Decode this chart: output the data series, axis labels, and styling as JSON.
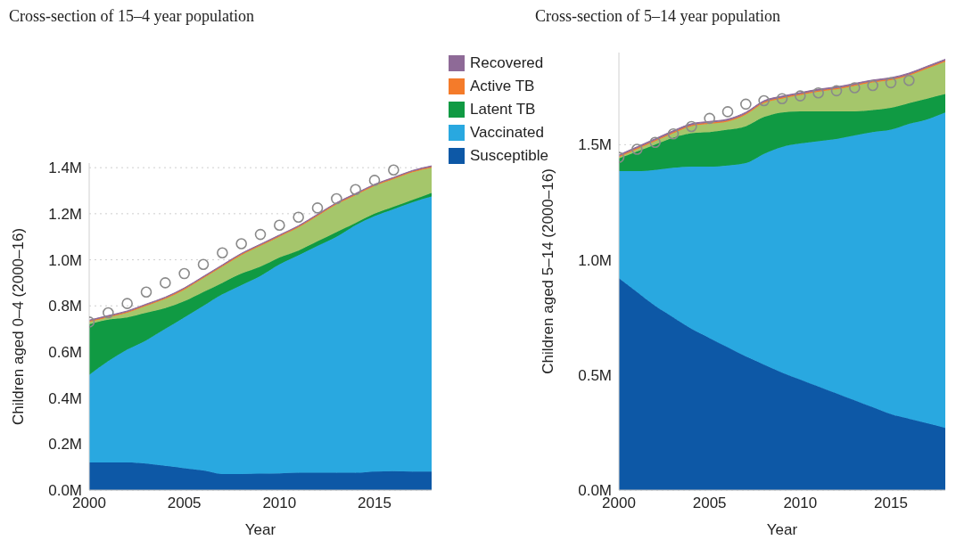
{
  "chart_data": [
    {
      "type": "area",
      "title": "Cross-section of 15–4 year population",
      "xlabel": "Year",
      "ylabel": "Children aged 0–4 (2000–16)",
      "stacked": true,
      "grid": "y",
      "legend": "top right",
      "x": [
        2000,
        2001,
        2002,
        2003,
        2004,
        2005,
        2006,
        2007,
        2008,
        2009,
        2010,
        2011,
        2012,
        2013,
        2014,
        2015,
        2016,
        2017,
        2018
      ],
      "xlim": [
        2000,
        2018
      ],
      "xticks": [
        2000,
        2005,
        2010,
        2015
      ],
      "ylim": [
        0,
        1.42
      ],
      "yticks": [
        {
          "value": 0,
          "label": "0.0M"
        },
        {
          "value": 0.2,
          "label": "0.2M"
        },
        {
          "value": 0.4,
          "label": "0.4M"
        },
        {
          "value": 0.6,
          "label": "0.6M"
        },
        {
          "value": 0.8,
          "label": "0.8M"
        },
        {
          "value": 1,
          "label": "1.0M"
        },
        {
          "value": 1.2,
          "label": "1.2M"
        },
        {
          "value": 1.4,
          "label": "1.4M"
        }
      ],
      "series": [
        {
          "name": "Susceptible",
          "color": "#0d58a6",
          "values": [
            0.12,
            0.12,
            0.12,
            0.115,
            0.105,
            0.095,
            0.085,
            0.07,
            0.07,
            0.072,
            0.073,
            0.075,
            0.075,
            0.075,
            0.075,
            0.08,
            0.082,
            0.08,
            0.08
          ]
        },
        {
          "name": "Vaccinated",
          "color": "#29a8e0",
          "values": [
            0.38,
            0.44,
            0.49,
            0.535,
            0.595,
            0.655,
            0.715,
            0.78,
            0.82,
            0.858,
            0.907,
            0.945,
            0.985,
            1.025,
            1.075,
            1.11,
            1.138,
            1.17,
            1.195
          ]
        },
        {
          "name": "Latent TB",
          "color": "#109a43",
          "values": [
            0.22,
            0.18,
            0.14,
            0.12,
            0.09,
            0.07,
            0.06,
            0.05,
            0.05,
            0.04,
            0.03,
            0.02,
            0.02,
            0.02,
            0.01,
            0.01,
            0.01,
            0.01,
            0.015
          ]
        },
        {
          "color": "#a5c66b",
          "values": [
            0.01,
            0.01,
            0.02,
            0.03,
            0.04,
            0.05,
            0.06,
            0.07,
            0.08,
            0.09,
            0.09,
            0.1,
            0.11,
            0.12,
            0.12,
            0.12,
            0.12,
            0.12,
            0.11
          ]
        },
        {
          "name": "Active TB",
          "color": "#f47b2a",
          "values": [
            0.004,
            0.004,
            0.004,
            0.004,
            0.004,
            0.004,
            0.004,
            0.004,
            0.004,
            0.004,
            0.004,
            0.004,
            0.004,
            0.004,
            0.004,
            0.004,
            0.004,
            0.004,
            0.004
          ]
        },
        {
          "name": "Recovered",
          "color": "#8e6a97",
          "values": [
            0.004,
            0.004,
            0.004,
            0.004,
            0.004,
            0.004,
            0.004,
            0.004,
            0.004,
            0.004,
            0.004,
            0.004,
            0.004,
            0.004,
            0.004,
            0.004,
            0.004,
            0.004,
            0.004
          ]
        },
        {
          "type": "scatter",
          "marker": "circle",
          "color": "#8a8a8a",
          "x": [
            2000,
            2001,
            2002,
            2003,
            2004,
            2005,
            2006,
            2007,
            2008,
            2009,
            2010,
            2011,
            2012,
            2013,
            2014,
            2015,
            2016
          ],
          "values": [
            0.73,
            0.77,
            0.81,
            0.86,
            0.9,
            0.94,
            0.98,
            1.03,
            1.07,
            1.11,
            1.15,
            1.185,
            1.225,
            1.265,
            1.305,
            1.345,
            1.39
          ]
        }
      ]
    },
    {
      "type": "area",
      "title": "Cross-section of 5–14 year population",
      "xlabel": "Year",
      "ylabel": "Children aged 5–14 (2000–16)",
      "stacked": true,
      "grid": "y",
      "x": [
        2000,
        2001,
        2002,
        2003,
        2004,
        2005,
        2006,
        2007,
        2008,
        2009,
        2010,
        2011,
        2012,
        2013,
        2014,
        2015,
        2016,
        2017,
        2018
      ],
      "xlim": [
        2000,
        2018
      ],
      "xticks": [
        2000,
        2005,
        2010,
        2015
      ],
      "ylim": [
        0,
        1.9
      ],
      "yticks": [
        {
          "value": 0,
          "label": "0.0M"
        },
        {
          "value": 0.5,
          "label": "0.5M"
        },
        {
          "value": 1,
          "label": "1.0M"
        },
        {
          "value": 1.5,
          "label": "1.5M"
        }
      ],
      "series": [
        {
          "color": "#0d58a6",
          "values": [
            0.92,
            0.86,
            0.8,
            0.75,
            0.7,
            0.66,
            0.62,
            0.58,
            0.545,
            0.51,
            0.48,
            0.45,
            0.42,
            0.39,
            0.36,
            0.33,
            0.31,
            0.29,
            0.27
          ]
        },
        {
          "color": "#29a8e0",
          "values": [
            0.465,
            0.525,
            0.59,
            0.65,
            0.705,
            0.745,
            0.79,
            0.84,
            0.915,
            0.98,
            1.025,
            1.065,
            1.105,
            1.15,
            1.195,
            1.235,
            1.28,
            1.32,
            1.37
          ]
        },
        {
          "color": "#109a43",
          "values": [
            0.055,
            0.085,
            0.11,
            0.13,
            0.145,
            0.15,
            0.155,
            0.16,
            0.16,
            0.15,
            0.14,
            0.13,
            0.12,
            0.105,
            0.095,
            0.095,
            0.09,
            0.09,
            0.08
          ]
        },
        {
          "color": "#a5c66b",
          "values": [
            0.005,
            0.01,
            0.015,
            0.02,
            0.03,
            0.035,
            0.035,
            0.05,
            0.06,
            0.06,
            0.07,
            0.085,
            0.095,
            0.11,
            0.12,
            0.12,
            0.12,
            0.13,
            0.14
          ]
        },
        {
          "color": "#f47b2a",
          "values": [
            0.005,
            0.005,
            0.005,
            0.005,
            0.005,
            0.005,
            0.005,
            0.005,
            0.005,
            0.005,
            0.005,
            0.005,
            0.005,
            0.005,
            0.005,
            0.005,
            0.005,
            0.005,
            0.005
          ]
        },
        {
          "color": "#8e6a97",
          "values": [
            0.006,
            0.006,
            0.006,
            0.006,
            0.006,
            0.006,
            0.006,
            0.006,
            0.006,
            0.006,
            0.006,
            0.006,
            0.006,
            0.006,
            0.006,
            0.006,
            0.006,
            0.006,
            0.006
          ]
        },
        {
          "type": "scatter",
          "marker": "circle",
          "color": "#8a8a8a",
          "x": [
            2000,
            2001,
            2002,
            2003,
            2004,
            2005,
            2006,
            2007,
            2008,
            2009,
            2010,
            2011,
            2012,
            2013,
            2014,
            2015,
            2016
          ],
          "values": [
            1.445,
            1.48,
            1.51,
            1.547,
            1.579,
            1.614,
            1.643,
            1.676,
            1.691,
            1.7,
            1.712,
            1.725,
            1.734,
            1.747,
            1.757,
            1.769,
            1.779
          ]
        }
      ]
    }
  ]
}
